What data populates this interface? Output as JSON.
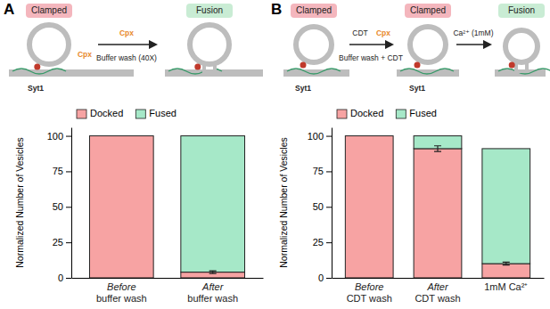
{
  "chart_data": [
    {
      "type": "bar",
      "panel_label": "A",
      "annotations": [
        "Clamped",
        "Fusion",
        "Syt1",
        "Cpx",
        "Cpx",
        "Buffer wash (40X)"
      ],
      "categories": [
        [
          "Before",
          "buffer wash"
        ],
        [
          "After",
          "buffer wash"
        ]
      ],
      "series": [
        {
          "name": "Docked",
          "color": "#f7a3a3",
          "values": [
            100,
            4
          ],
          "errors": [
            null,
            1
          ]
        },
        {
          "name": "Fused",
          "color": "#a6e8c8",
          "values": [
            0,
            96
          ]
        }
      ],
      "stacked": true,
      "y_label": "Normalized Number of Vesicles",
      "ylim": [
        0,
        106
      ],
      "yticks": [
        0,
        25,
        50,
        75,
        100
      ],
      "legend": "upper left"
    },
    {
      "type": "bar",
      "panel_label": "B",
      "annotations": [
        "Clamped",
        "Clamped",
        "Fusion",
        "Syt1",
        "Syt1",
        "CDT",
        "Cpx",
        "Buffer wash + CDT",
        "Ca²⁺ (1mM)"
      ],
      "categories": [
        [
          "Before",
          "CDT wash"
        ],
        [
          "After",
          "CDT wash"
        ],
        [
          "1mM Ca²⁺"
        ]
      ],
      "series": [
        {
          "name": "Docked",
          "color": "#f7a3a3",
          "values": [
            100,
            91,
            10
          ],
          "errors": [
            null,
            2,
            1
          ]
        },
        {
          "name": "Fused",
          "color": "#a6e8c8",
          "values": [
            0,
            9,
            81
          ]
        }
      ],
      "stacked": true,
      "y_label": "Normalized Number of Vesicles",
      "ylim": [
        0,
        106
      ],
      "yticks": [
        0,
        25,
        50,
        75,
        100
      ],
      "legend": "upper left"
    }
  ]
}
